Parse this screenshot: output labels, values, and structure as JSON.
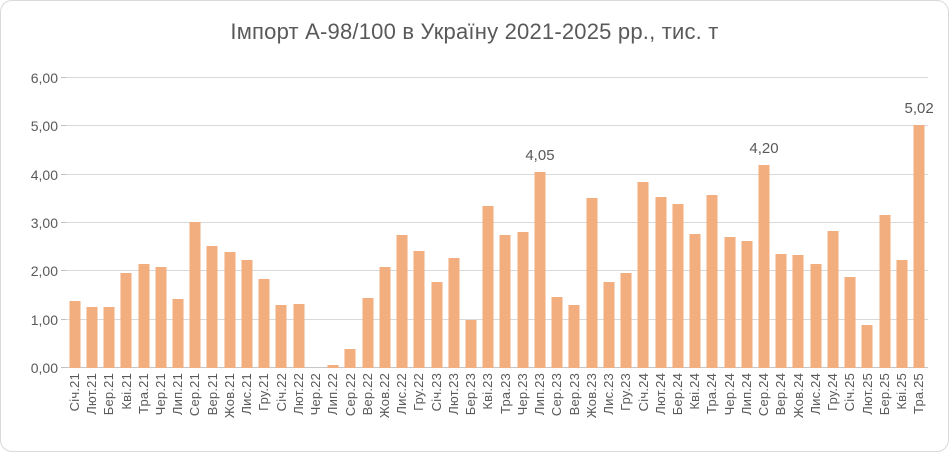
{
  "chart_data": {
    "type": "bar",
    "title": "Імпорт А-98/100 в Україну 2021-2025 рр., тис. т",
    "unit": "тис. т",
    "categories": [
      "Січ.21",
      "Лют.21",
      "Бер.21",
      "Кві.21",
      "Тра.21",
      "Чер.21",
      "Лип.21",
      "Сер.21",
      "Вер.21",
      "Жов.21",
      "Лис.21",
      "Гру.21",
      "Січ.22",
      "Лют.22",
      "Чер.22",
      "Лип.22",
      "Сер.22",
      "Вер.22",
      "Жов.22",
      "Лис.22",
      "Гру.22",
      "Січ.23",
      "Лют.23",
      "Бер.23",
      "Кві.23",
      "Тра.23",
      "Чер.23",
      "Лип.23",
      "Сер.23",
      "Вер.23",
      "Жов.23",
      "Лис.23",
      "Гру.23",
      "Січ.24",
      "Лют.24",
      "Бер.24",
      "Кві.24",
      "Тра.24",
      "Чер.24",
      "Лип.24",
      "Сер.24",
      "Вер.24",
      "Жов.24",
      "Лис.24",
      "Гру.24",
      "Січ.25",
      "Лют.25",
      "Бер.25",
      "Кві.25",
      "Тра.25"
    ],
    "values": [
      1.38,
      1.26,
      1.26,
      1.96,
      2.15,
      2.1,
      1.43,
      3.03,
      2.52,
      2.4,
      2.24,
      1.85,
      1.3,
      1.33,
      0,
      0.07,
      0.4,
      1.45,
      2.08,
      2.76,
      2.43,
      1.78,
      2.28,
      1.0,
      3.35,
      2.76,
      2.82,
      4.05,
      1.47,
      1.3,
      3.52,
      1.78,
      1.97,
      3.85,
      3.54,
      3.39,
      2.78,
      3.57,
      2.72,
      2.63,
      4.2,
      2.36,
      2.33,
      2.16,
      2.84,
      1.88,
      0.89,
      3.17,
      2.23,
      5.02
    ],
    "point_labels": [
      {
        "category": "Лип.23",
        "text": "4,05"
      },
      {
        "category": "Сер.24",
        "text": "4,20"
      },
      {
        "category": "Тра.25",
        "text": "5,02"
      }
    ],
    "ylim": [
      0,
      6
    ],
    "ytick_step": 1,
    "ytick_labels": [
      "0,00",
      "1,00",
      "2,00",
      "3,00",
      "4,00",
      "5,00",
      "6,00"
    ],
    "grid": true,
    "legend": "none",
    "bar_color": "#F2AE7E",
    "axis_text_color": "#595959",
    "gridline_color": "#D9D9D9"
  }
}
